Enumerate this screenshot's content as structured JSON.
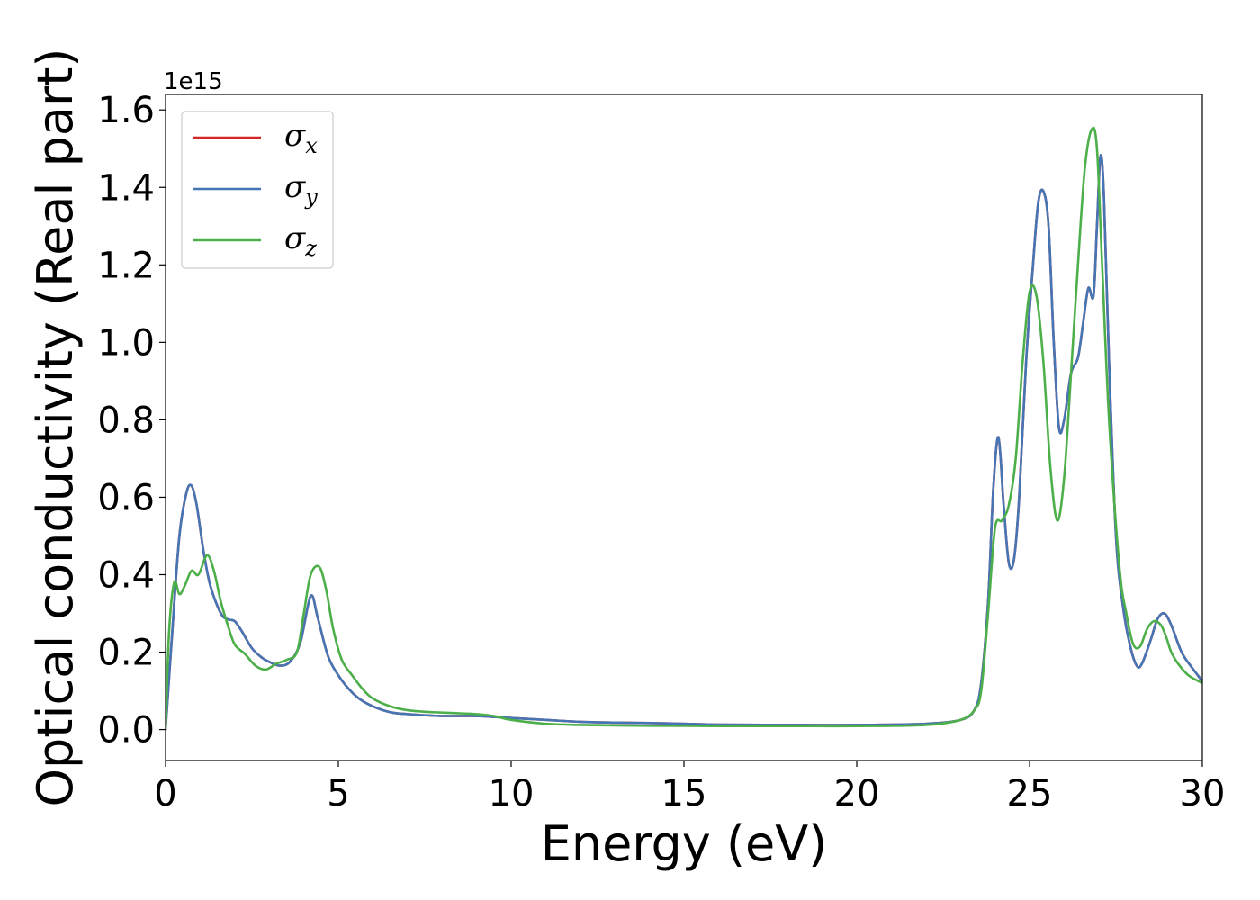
{
  "chart_data": {
    "type": "line",
    "title": "",
    "xlabel": "Energy (eV)",
    "ylabel": "Optical conductivity (Real part)",
    "y_offset_label": "1e15",
    "xlim": [
      0,
      30
    ],
    "ylim": [
      -0.08,
      1.64
    ],
    "x_ticks": [
      0,
      5,
      10,
      15,
      20,
      25,
      30
    ],
    "x_tick_labels": [
      "0",
      "5",
      "10",
      "15",
      "20",
      "25",
      "30"
    ],
    "y_ticks": [
      0.0,
      0.2,
      0.4,
      0.6,
      0.8,
      1.0,
      1.2,
      1.4,
      1.6
    ],
    "y_tick_labels": [
      "0.0",
      "0.2",
      "0.4",
      "0.6",
      "0.8",
      "1.0",
      "1.2",
      "1.4",
      "1.6"
    ],
    "grid": false,
    "legend_position": "upper-left",
    "series": [
      {
        "name": "σx",
        "label_base": "σ",
        "label_sub": "x",
        "color": "#d62728",
        "x": [
          0,
          0.2,
          0.4,
          0.6,
          0.75,
          0.9,
          1.1,
          1.3,
          1.6,
          1.8,
          2.0,
          2.2,
          2.5,
          2.8,
          3.0,
          3.3,
          3.6,
          3.9,
          4.2,
          4.4,
          4.7,
          5.0,
          5.3,
          5.6,
          6.0,
          6.5,
          7.0,
          8.0,
          9.0,
          10.0,
          11.0,
          12.0,
          13.0,
          14.0,
          15.0,
          16.0,
          18.0,
          20.0,
          22.0,
          23.0,
          23.4,
          23.6,
          23.8,
          23.95,
          24.1,
          24.25,
          24.4,
          24.55,
          24.7,
          24.9,
          25.1,
          25.25,
          25.4,
          25.55,
          25.7,
          25.85,
          26.0,
          26.2,
          26.4,
          26.55,
          26.7,
          26.85,
          26.95,
          27.05,
          27.15,
          27.3,
          27.5,
          27.7,
          27.9,
          28.1,
          28.25,
          28.5,
          28.7,
          28.9,
          29.1,
          29.4,
          29.7,
          30.0
        ],
        "values": [
          0.0,
          0.26,
          0.5,
          0.61,
          0.63,
          0.58,
          0.46,
          0.37,
          0.3,
          0.285,
          0.28,
          0.255,
          0.21,
          0.185,
          0.175,
          0.165,
          0.175,
          0.225,
          0.345,
          0.29,
          0.19,
          0.14,
          0.105,
          0.08,
          0.06,
          0.045,
          0.04,
          0.035,
          0.035,
          0.03,
          0.025,
          0.02,
          0.018,
          0.017,
          0.015,
          0.013,
          0.012,
          0.012,
          0.015,
          0.025,
          0.05,
          0.12,
          0.33,
          0.62,
          0.755,
          0.58,
          0.43,
          0.44,
          0.6,
          0.95,
          1.2,
          1.36,
          1.39,
          1.3,
          1.0,
          0.78,
          0.8,
          0.92,
          0.96,
          1.05,
          1.14,
          1.12,
          1.3,
          1.48,
          1.38,
          0.95,
          0.5,
          0.32,
          0.22,
          0.165,
          0.17,
          0.23,
          0.285,
          0.3,
          0.27,
          0.2,
          0.16,
          0.125
        ]
      },
      {
        "name": "σy",
        "label_base": "σ",
        "label_sub": "y",
        "color": "#4575b4",
        "x": [
          0,
          0.2,
          0.4,
          0.6,
          0.75,
          0.9,
          1.1,
          1.3,
          1.6,
          1.8,
          2.0,
          2.2,
          2.5,
          2.8,
          3.0,
          3.3,
          3.6,
          3.9,
          4.2,
          4.4,
          4.7,
          5.0,
          5.3,
          5.6,
          6.0,
          6.5,
          7.0,
          8.0,
          9.0,
          10.0,
          11.0,
          12.0,
          13.0,
          14.0,
          15.0,
          16.0,
          18.0,
          20.0,
          22.0,
          23.0,
          23.4,
          23.6,
          23.8,
          23.95,
          24.1,
          24.25,
          24.4,
          24.55,
          24.7,
          24.9,
          25.1,
          25.25,
          25.4,
          25.55,
          25.7,
          25.85,
          26.0,
          26.2,
          26.4,
          26.55,
          26.7,
          26.85,
          26.95,
          27.05,
          27.15,
          27.3,
          27.5,
          27.7,
          27.9,
          28.1,
          28.25,
          28.5,
          28.7,
          28.9,
          29.1,
          29.4,
          29.7,
          30.0
        ],
        "values": [
          0.0,
          0.26,
          0.5,
          0.61,
          0.63,
          0.58,
          0.46,
          0.37,
          0.3,
          0.285,
          0.28,
          0.255,
          0.21,
          0.185,
          0.175,
          0.165,
          0.175,
          0.225,
          0.345,
          0.29,
          0.19,
          0.14,
          0.105,
          0.08,
          0.06,
          0.045,
          0.04,
          0.035,
          0.035,
          0.03,
          0.025,
          0.02,
          0.018,
          0.017,
          0.015,
          0.013,
          0.012,
          0.012,
          0.015,
          0.025,
          0.05,
          0.12,
          0.33,
          0.62,
          0.755,
          0.58,
          0.43,
          0.44,
          0.6,
          0.95,
          1.2,
          1.36,
          1.39,
          1.3,
          1.0,
          0.78,
          0.8,
          0.92,
          0.96,
          1.05,
          1.14,
          1.12,
          1.3,
          1.48,
          1.38,
          0.95,
          0.5,
          0.32,
          0.22,
          0.165,
          0.17,
          0.23,
          0.285,
          0.3,
          0.27,
          0.2,
          0.16,
          0.125
        ]
      },
      {
        "name": "σz",
        "label_base": "σ",
        "label_sub": "z",
        "color": "#4daf4a",
        "x": [
          0,
          0.1,
          0.25,
          0.4,
          0.55,
          0.75,
          0.95,
          1.2,
          1.4,
          1.6,
          1.8,
          2.0,
          2.3,
          2.6,
          2.9,
          3.2,
          3.5,
          3.8,
          4.0,
          4.2,
          4.45,
          4.65,
          4.85,
          5.1,
          5.4,
          5.7,
          6.0,
          6.5,
          7.0,
          7.5,
          8.0,
          8.5,
          9.0,
          9.5,
          10.0,
          11.0,
          12.0,
          14.0,
          16.0,
          18.0,
          20.0,
          22.0,
          23.0,
          23.4,
          23.6,
          23.8,
          24.0,
          24.2,
          24.4,
          24.6,
          24.8,
          25.0,
          25.2,
          25.4,
          25.6,
          25.8,
          26.0,
          26.2,
          26.4,
          26.6,
          26.8,
          26.95,
          27.1,
          27.3,
          27.6,
          27.8,
          28.0,
          28.2,
          28.4,
          28.6,
          28.8,
          28.95,
          29.1,
          29.3,
          29.6,
          30.0
        ],
        "values": [
          0.0,
          0.25,
          0.38,
          0.35,
          0.37,
          0.41,
          0.4,
          0.45,
          0.41,
          0.33,
          0.27,
          0.22,
          0.195,
          0.165,
          0.155,
          0.17,
          0.18,
          0.2,
          0.3,
          0.4,
          0.42,
          0.36,
          0.26,
          0.18,
          0.14,
          0.105,
          0.08,
          0.06,
          0.05,
          0.046,
          0.044,
          0.042,
          0.04,
          0.035,
          0.025,
          0.015,
          0.012,
          0.01,
          0.009,
          0.009,
          0.009,
          0.012,
          0.025,
          0.05,
          0.1,
          0.3,
          0.52,
          0.54,
          0.58,
          0.7,
          0.95,
          1.13,
          1.12,
          0.95,
          0.68,
          0.54,
          0.65,
          0.92,
          1.2,
          1.45,
          1.55,
          1.5,
          1.2,
          0.8,
          0.42,
          0.3,
          0.22,
          0.215,
          0.26,
          0.28,
          0.27,
          0.24,
          0.2,
          0.17,
          0.14,
          0.12
        ]
      }
    ]
  }
}
